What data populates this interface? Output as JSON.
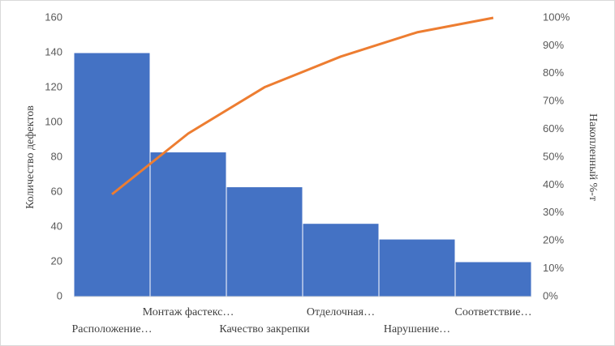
{
  "chart_data": {
    "type": "bar",
    "y_label": "Количество дефектов",
    "y2_label": "Накопленный %-т",
    "categories": [
      "Расположение…",
      "Монтаж фастекс…",
      "Качество закрепки",
      "Отделочная…",
      "Нарушение…",
      "Соответствие…"
    ],
    "series": [
      {
        "type": "bar",
        "color": "#4472c4",
        "values": [
          140,
          83,
          63,
          42,
          33,
          20
        ]
      },
      {
        "type": "line",
        "axis": "y2",
        "color": "#ed7d31",
        "values": [
          36.7,
          58.5,
          75.1,
          86.1,
          94.8,
          100
        ]
      }
    ],
    "ylim": [
      0,
      160
    ],
    "yticks": [
      0,
      20,
      40,
      60,
      80,
      100,
      120,
      140,
      160
    ],
    "y2lim": [
      0,
      100
    ],
    "y2ticks": [
      {
        "value": 0,
        "label": "0%"
      },
      {
        "value": 10,
        "label": "10%"
      },
      {
        "value": 20,
        "label": "20%"
      },
      {
        "value": 30,
        "label": "30%"
      },
      {
        "value": 40,
        "label": "40%"
      },
      {
        "value": 50,
        "label": "50%"
      },
      {
        "value": 60,
        "label": "60%"
      },
      {
        "value": 70,
        "label": "70%"
      },
      {
        "value": 80,
        "label": "80%"
      },
      {
        "value": 90,
        "label": "90%"
      },
      {
        "value": 100,
        "label": "100%"
      }
    ],
    "grid": false
  }
}
